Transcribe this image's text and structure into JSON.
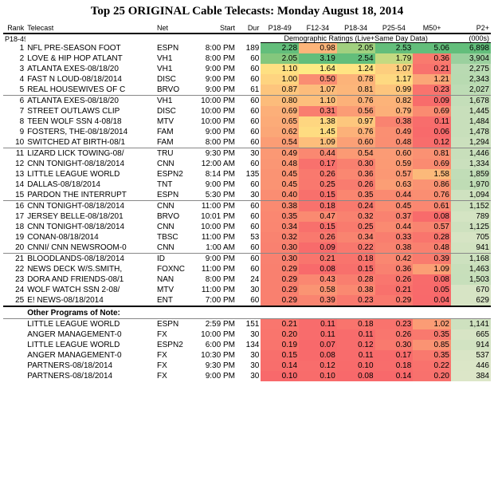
{
  "title": "Top 25 ORIGINAL Cable Telecasts: Monday August 18, 2014",
  "corner_left": "P18-49",
  "group_label_demo": "Demographic Ratings (Live+Same Day Data)",
  "group_label_000s": "(000s)",
  "columns": {
    "rank": "Rank",
    "telecast": "Telecast",
    "net": "Net",
    "start": "Start",
    "dur": "Dur",
    "p1849": "P18-49",
    "f1234": "F12-34",
    "p1834": "P18-34",
    "p2554": "P25-54",
    "m50": "M50+",
    "p2": "P2+"
  },
  "other_label": "Other Programs of Note:",
  "heat": {
    "p1849": {
      "min": 0.1,
      "max": 2.28
    },
    "f1234": {
      "min": 0.07,
      "max": 3.19
    },
    "p1834": {
      "min": 0.08,
      "max": 2.54
    },
    "p2554": {
      "min": 0.14,
      "max": 2.53
    },
    "m50": {
      "min": 0.04,
      "max": 5.06
    },
    "p2": {
      "min": 384,
      "max": 6898
    }
  },
  "rows": [
    {
      "rank": 1,
      "telecast": "NFL PRE-SEASON FOOT",
      "net": "ESPN",
      "start": "8:00 PM",
      "dur": 189,
      "p1849": "2.28",
      "f1234": "0.98",
      "p1834": "2.05",
      "p2554": "2.53",
      "m50": "5.06",
      "p2": "6,898"
    },
    {
      "rank": 2,
      "telecast": "LOVE & HIP HOP ATLANT",
      "net": "VH1",
      "start": "8:00 PM",
      "dur": 60,
      "p1849": "2.05",
      "f1234": "3.19",
      "p1834": "2.54",
      "p2554": "1.79",
      "m50": "0.36",
      "p2": "3,904"
    },
    {
      "rank": 3,
      "telecast": "ATLANTA EXES-08/18/20",
      "net": "VH1",
      "start": "9:00 PM",
      "dur": 60,
      "p1849": "1.10",
      "f1234": "1.64",
      "p1834": "1.24",
      "p2554": "1.07",
      "m50": "0.21",
      "p2": "2,275"
    },
    {
      "rank": 4,
      "telecast": "FAST N LOUD-08/18/2014",
      "net": "DISC",
      "start": "9:00 PM",
      "dur": 60,
      "p1849": "1.00",
      "f1234": "0.50",
      "p1834": "0.78",
      "p2554": "1.17",
      "m50": "1.21",
      "p2": "2,343"
    },
    {
      "rank": 5,
      "telecast": "REAL HOUSEWIVES OF C",
      "net": "BRVO",
      "start": "9:00 PM",
      "dur": 61,
      "p1849": "0.87",
      "f1234": "1.07",
      "p1834": "0.81",
      "p2554": "0.99",
      "m50": "0.23",
      "p2": "2,027"
    },
    {
      "rank": 6,
      "telecast": "ATLANTA EXES-08/18/20",
      "net": "VH1",
      "start": "10:00 PM",
      "dur": 60,
      "p1849": "0.80",
      "f1234": "1.10",
      "p1834": "0.76",
      "p2554": "0.82",
      "m50": "0.09",
      "p2": "1,678",
      "sep": true
    },
    {
      "rank": 7,
      "telecast": "STREET OUTLAWS CLIP",
      "net": "DISC",
      "start": "10:00 PM",
      "dur": 60,
      "p1849": "0.69",
      "f1234": "0.31",
      "p1834": "0.56",
      "p2554": "0.79",
      "m50": "0.69",
      "p2": "1,445"
    },
    {
      "rank": 8,
      "telecast": "TEEN WOLF SSN 4-08/18",
      "net": "MTV",
      "start": "10:00 PM",
      "dur": 60,
      "p1849": "0.65",
      "f1234": "1.38",
      "p1834": "0.97",
      "p2554": "0.38",
      "m50": "0.11",
      "p2": "1,484"
    },
    {
      "rank": 9,
      "telecast": "FOSTERS, THE-08/18/2014",
      "net": "FAM",
      "start": "9:00 PM",
      "dur": 60,
      "p1849": "0.62",
      "f1234": "1.45",
      "p1834": "0.76",
      "p2554": "0.49",
      "m50": "0.06",
      "p2": "1,478"
    },
    {
      "rank": 10,
      "telecast": "SWITCHED AT BIRTH-08/1",
      "net": "FAM",
      "start": "8:00 PM",
      "dur": 60,
      "p1849": "0.54",
      "f1234": "1.09",
      "p1834": "0.60",
      "p2554": "0.48",
      "m50": "0.12",
      "p2": "1,294"
    },
    {
      "rank": 11,
      "telecast": "LIZARD LICK TOWING-08/",
      "net": "TRU",
      "start": "9:30 PM",
      "dur": 30,
      "p1849": "0.49",
      "f1234": "0.44",
      "p1834": "0.54",
      "p2554": "0.60",
      "m50": "0.81",
      "p2": "1,446",
      "sep": true
    },
    {
      "rank": 12,
      "telecast": "CNN TONIGHT-08/18/2014",
      "net": "CNN",
      "start": "12:00 AM",
      "dur": 60,
      "p1849": "0.48",
      "f1234": "0.17",
      "p1834": "0.30",
      "p2554": "0.59",
      "m50": "0.69",
      "p2": "1,334"
    },
    {
      "rank": 13,
      "telecast": "LITTLE LEAGUE WORLD",
      "net": "ESPN2",
      "start": "8:14 PM",
      "dur": 135,
      "p1849": "0.45",
      "f1234": "0.26",
      "p1834": "0.36",
      "p2554": "0.57",
      "m50": "1.58",
      "p2": "1,859"
    },
    {
      "rank": 14,
      "telecast": "DALLAS-08/18/2014",
      "net": "TNT",
      "start": "9:00 PM",
      "dur": 60,
      "p1849": "0.45",
      "f1234": "0.25",
      "p1834": "0.26",
      "p2554": "0.63",
      "m50": "0.86",
      "p2": "1,970"
    },
    {
      "rank": 15,
      "telecast": "PARDON THE INTERRUPT",
      "net": "ESPN",
      "start": "5:30 PM",
      "dur": 30,
      "p1849": "0.40",
      "f1234": "0.15",
      "p1834": "0.35",
      "p2554": "0.44",
      "m50": "0.76",
      "p2": "1,094"
    },
    {
      "rank": 16,
      "telecast": "CNN TONIGHT-08/18/2014",
      "net": "CNN",
      "start": "11:00 PM",
      "dur": 60,
      "p1849": "0.38",
      "f1234": "0.18",
      "p1834": "0.24",
      "p2554": "0.45",
      "m50": "0.61",
      "p2": "1,152",
      "sep": true
    },
    {
      "rank": 17,
      "telecast": "JERSEY BELLE-08/18/201",
      "net": "BRVO",
      "start": "10:01 PM",
      "dur": 60,
      "p1849": "0.35",
      "f1234": "0.47",
      "p1834": "0.32",
      "p2554": "0.37",
      "m50": "0.08",
      "p2": "789"
    },
    {
      "rank": 18,
      "telecast": "CNN TONIGHT-08/18/2014",
      "net": "CNN",
      "start": "10:00 PM",
      "dur": 60,
      "p1849": "0.34",
      "f1234": "0.15",
      "p1834": "0.25",
      "p2554": "0.44",
      "m50": "0.57",
      "p2": "1,125"
    },
    {
      "rank": 19,
      "telecast": "CONAN-08/18/2014",
      "net": "TBSC",
      "start": "11:00 PM",
      "dur": 53,
      "p1849": "0.32",
      "f1234": "0.26",
      "p1834": "0.34",
      "p2554": "0.33",
      "m50": "0.28",
      "p2": "705"
    },
    {
      "rank": 20,
      "telecast": "CNNI/ CNN NEWSROOM-0",
      "net": "CNN",
      "start": "1:00 AM",
      "dur": 60,
      "p1849": "0.30",
      "f1234": "0.09",
      "p1834": "0.22",
      "p2554": "0.38",
      "m50": "0.48",
      "p2": "941"
    },
    {
      "rank": 21,
      "telecast": "BLOODLANDS-08/18/2014",
      "net": "ID",
      "start": "9:00 PM",
      "dur": 60,
      "p1849": "0.30",
      "f1234": "0.21",
      "p1834": "0.18",
      "p2554": "0.42",
      "m50": "0.39",
      "p2": "1,168",
      "sep": true
    },
    {
      "rank": 22,
      "telecast": "NEWS DECK W/S.SMITH,",
      "net": "FOXNC",
      "start": "11:00 PM",
      "dur": 60,
      "p1849": "0.29",
      "f1234": "0.08",
      "p1834": "0.15",
      "p2554": "0.36",
      "m50": "1.09",
      "p2": "1,463"
    },
    {
      "rank": 23,
      "telecast": "DORA AND FRIENDS-08/1",
      "net": "NAN",
      "start": "8:00 PM",
      "dur": 24,
      "p1849": "0.29",
      "f1234": "0.43",
      "p1834": "0.28",
      "p2554": "0.26",
      "m50": "0.08",
      "p2": "1,503"
    },
    {
      "rank": 24,
      "telecast": "WOLF WATCH SSN 2-08/",
      "net": "MTV",
      "start": "11:00 PM",
      "dur": 30,
      "p1849": "0.29",
      "f1234": "0.58",
      "p1834": "0.38",
      "p2554": "0.21",
      "m50": "0.05",
      "p2": "670"
    },
    {
      "rank": 25,
      "telecast": "E! NEWS-08/18/2014",
      "net": "ENT",
      "start": "7:00 PM",
      "dur": 60,
      "p1849": "0.29",
      "f1234": "0.39",
      "p1834": "0.23",
      "p2554": "0.29",
      "m50": "0.04",
      "p2": "629"
    }
  ],
  "other_rows": [
    {
      "telecast": "LITTLE LEAGUE WORLD",
      "net": "ESPN",
      "start": "2:59 PM",
      "dur": 151,
      "p1849": "0.21",
      "f1234": "0.11",
      "p1834": "0.18",
      "p2554": "0.23",
      "m50": "1.02",
      "p2": "1,141"
    },
    {
      "telecast": "ANGER MANAGEMENT-0",
      "net": "FX",
      "start": "10:00 PM",
      "dur": 30,
      "p1849": "0.20",
      "f1234": "0.11",
      "p1834": "0.11",
      "p2554": "0.26",
      "m50": "0.35",
      "p2": "665"
    },
    {
      "telecast": "LITTLE LEAGUE WORLD",
      "net": "ESPN2",
      "start": "6:00 PM",
      "dur": 134,
      "p1849": "0.19",
      "f1234": "0.07",
      "p1834": "0.12",
      "p2554": "0.30",
      "m50": "0.85",
      "p2": "914"
    },
    {
      "telecast": "ANGER MANAGEMENT-0",
      "net": "FX",
      "start": "10:30 PM",
      "dur": 30,
      "p1849": "0.15",
      "f1234": "0.08",
      "p1834": "0.11",
      "p2554": "0.17",
      "m50": "0.35",
      "p2": "537"
    },
    {
      "telecast": "PARTNERS-08/18/2014",
      "net": "FX",
      "start": "9:30 PM",
      "dur": 30,
      "p1849": "0.14",
      "f1234": "0.12",
      "p1834": "0.10",
      "p2554": "0.18",
      "m50": "0.22",
      "p2": "446"
    },
    {
      "telecast": "PARTNERS-08/18/2014",
      "net": "FX",
      "start": "9:00 PM",
      "dur": 30,
      "p1849": "0.10",
      "f1234": "0.10",
      "p1834": "0.08",
      "p2554": "0.14",
      "m50": "0.20",
      "p2": "384"
    }
  ]
}
